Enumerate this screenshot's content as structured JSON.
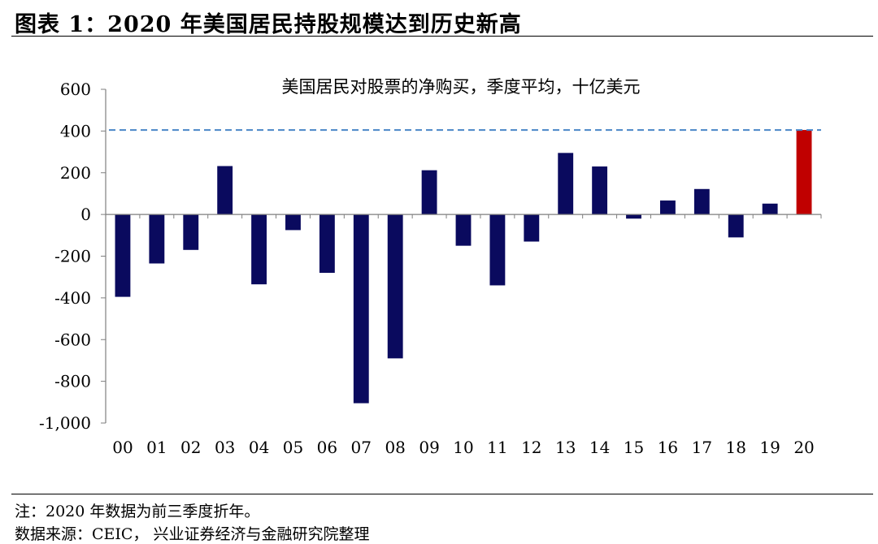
{
  "figure": {
    "title": "图表 1：2020 年美国居民持股规模达到历史新高",
    "note": "注：2020 年数据为前三季度折年。",
    "source": "数据来源：CEIC，  兴业证券经济与金融研究院整理"
  },
  "colors": {
    "bar": "#0a0a5e",
    "highlight": "#c00000",
    "reference_line": "#4a86c8",
    "axis": "#7f7f7f"
  },
  "chart_data": {
    "type": "bar",
    "title": "美国居民对股票的净购买，季度平均，十亿美元",
    "xlabel": "",
    "ylabel": "",
    "categories": [
      "00",
      "01",
      "02",
      "03",
      "04",
      "05",
      "06",
      "07",
      "08",
      "09",
      "10",
      "11",
      "12",
      "13",
      "14",
      "15",
      "16",
      "17",
      "18",
      "19",
      "20"
    ],
    "values": [
      -395,
      -235,
      -170,
      232,
      -335,
      -75,
      -280,
      -905,
      -690,
      212,
      -150,
      -340,
      -130,
      295,
      230,
      -20,
      67,
      122,
      -110,
      52,
      405
    ],
    "highlight_category": "20",
    "reference_line_value": 405,
    "ylim": [
      -1000,
      600
    ],
    "yticks": [
      600,
      400,
      200,
      0,
      -200,
      -400,
      -600,
      -800,
      -1000
    ],
    "ytick_labels": [
      "600",
      "400",
      "200",
      "0",
      "-200",
      "-400",
      "-600",
      "-800",
      "-1,000"
    ],
    "grid": false,
    "legend": "none"
  }
}
